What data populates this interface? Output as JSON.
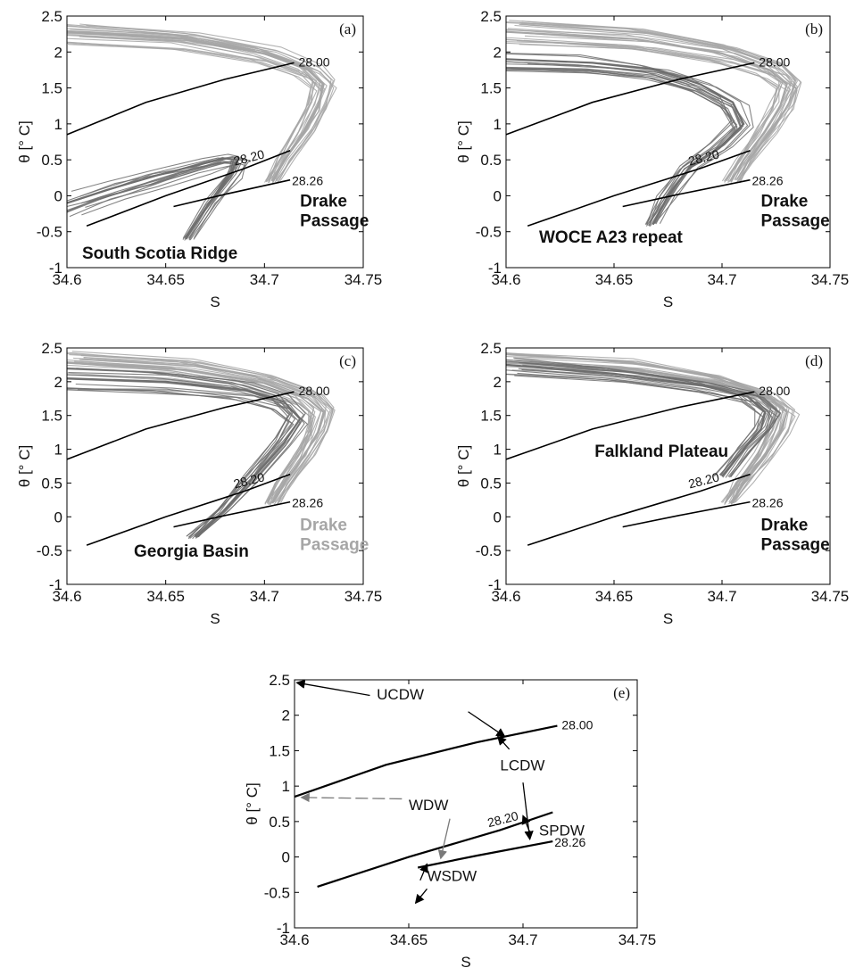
{
  "chart_data": [
    {
      "panel": "(a)",
      "type": "line",
      "xlabel": "S",
      "ylabel": "θ [° C]",
      "xlim": [
        34.6,
        34.75
      ],
      "ylim": [
        -1,
        2.5
      ],
      "xticks": [
        "34.6",
        "34.65",
        "34.7",
        "34.75"
      ],
      "yticks": [
        "-1",
        "-0.5",
        "0",
        "0.5",
        "1",
        "1.5",
        "2",
        "2.5"
      ],
      "isopycnals": [
        {
          "label": "28.00",
          "x": [
            34.6,
            34.64,
            34.68,
            34.715
          ],
          "y": [
            0.85,
            1.3,
            1.62,
            1.85
          ]
        },
        {
          "label": "28.20",
          "x": [
            34.61,
            34.65,
            34.69,
            34.713
          ],
          "y": [
            -0.42,
            0.0,
            0.38,
            0.63
          ]
        },
        {
          "label": "28.26",
          "x": [
            34.654,
            34.68,
            34.713
          ],
          "y": [
            -0.15,
            0.02,
            0.22
          ]
        }
      ],
      "series": [
        {
          "name": "Drake Passage",
          "color": "#a6a6a6",
          "x": [
            34.6,
            34.66,
            34.7,
            34.722,
            34.73,
            34.727,
            34.72,
            34.71,
            34.704
          ],
          "y": [
            2.28,
            2.18,
            1.98,
            1.75,
            1.55,
            1.25,
            0.9,
            0.5,
            0.2
          ]
        },
        {
          "name": "South Scotia Ridge",
          "color": "#6e6e6e",
          "x": [
            34.6,
            34.62,
            34.645,
            34.665,
            34.68,
            34.686,
            34.683,
            34.672,
            34.66
          ],
          "y": [
            -0.1,
            0.08,
            0.28,
            0.42,
            0.52,
            0.5,
            0.3,
            -0.1,
            -0.6
          ]
        }
      ],
      "annotations": [
        "South Scotia Ridge",
        "Drake Passage"
      ]
    },
    {
      "panel": "(b)",
      "type": "line",
      "xlabel": "S",
      "ylabel": "θ [° C]",
      "xlim": [
        34.6,
        34.75
      ],
      "ylim": [
        -1,
        2.5
      ],
      "xticks": [
        "34.6",
        "34.65",
        "34.7",
        "34.75"
      ],
      "yticks": [
        "-1",
        "-0.5",
        "0",
        "0.5",
        "1",
        "1.5",
        "2",
        "2.5"
      ],
      "isopycnals": [
        {
          "label": "28.00",
          "x": [
            34.6,
            34.64,
            34.68,
            34.715
          ],
          "y": [
            0.85,
            1.3,
            1.62,
            1.85
          ]
        },
        {
          "label": "28.20",
          "x": [
            34.61,
            34.65,
            34.69,
            34.713
          ],
          "y": [
            -0.42,
            0.0,
            0.38,
            0.63
          ]
        },
        {
          "label": "28.26",
          "x": [
            34.654,
            34.68,
            34.713
          ],
          "y": [
            -0.15,
            0.02,
            0.22
          ]
        }
      ],
      "series": [
        {
          "name": "Drake Passage",
          "color": "#a6a6a6",
          "x": [
            34.6,
            34.66,
            34.7,
            34.722,
            34.73,
            34.727,
            34.72,
            34.71,
            34.704
          ],
          "y": [
            2.28,
            2.18,
            1.98,
            1.75,
            1.55,
            1.25,
            0.9,
            0.5,
            0.2
          ]
        },
        {
          "name": "WOCE A23 repeat",
          "color": "#6e6e6e",
          "x": [
            34.6,
            34.64,
            34.67,
            34.69,
            34.705,
            34.71,
            34.7,
            34.685,
            34.675,
            34.668
          ],
          "y": [
            1.9,
            1.85,
            1.75,
            1.55,
            1.3,
            1.0,
            0.7,
            0.4,
            0.0,
            -0.4
          ]
        }
      ],
      "annotations": [
        "WOCE A23 repeat",
        "Drake Passage"
      ]
    },
    {
      "panel": "(c)",
      "type": "line",
      "xlabel": "S",
      "ylabel": "θ [° C]",
      "xlim": [
        34.6,
        34.75
      ],
      "ylim": [
        -1,
        2.5
      ],
      "xticks": [
        "34.6",
        "34.65",
        "34.7",
        "34.75"
      ],
      "yticks": [
        "-1",
        "-0.5",
        "0",
        "0.5",
        "1",
        "1.5",
        "2",
        "2.5"
      ],
      "isopycnals": [
        {
          "label": "28.00",
          "x": [
            34.6,
            34.64,
            34.68,
            34.715
          ],
          "y": [
            0.85,
            1.3,
            1.62,
            1.85
          ]
        },
        {
          "label": "28.20",
          "x": [
            34.61,
            34.65,
            34.69,
            34.713
          ],
          "y": [
            -0.42,
            0.0,
            0.38,
            0.63
          ]
        },
        {
          "label": "28.26",
          "x": [
            34.654,
            34.68,
            34.713
          ],
          "y": [
            -0.15,
            0.02,
            0.22
          ]
        }
      ],
      "series": [
        {
          "name": "Drake Passage",
          "color": "#a6a6a6",
          "x": [
            34.6,
            34.66,
            34.7,
            34.722,
            34.73,
            34.727,
            34.72,
            34.71,
            34.704
          ],
          "y": [
            2.28,
            2.18,
            1.98,
            1.75,
            1.55,
            1.25,
            0.9,
            0.5,
            0.2
          ]
        },
        {
          "name": "Georgia Basin",
          "color": "#6e6e6e",
          "x": [
            34.6,
            34.65,
            34.69,
            34.71,
            34.718,
            34.71,
            34.695,
            34.68,
            34.665
          ],
          "y": [
            2.05,
            2.0,
            1.88,
            1.7,
            1.45,
            1.1,
            0.6,
            0.1,
            -0.3
          ]
        }
      ],
      "annotations": [
        "Georgia Basin",
        "Drake Passage"
      ]
    },
    {
      "panel": "(d)",
      "type": "line",
      "xlabel": "S",
      "ylabel": "θ [° C]",
      "xlim": [
        34.6,
        34.75
      ],
      "ylim": [
        -1,
        2.5
      ],
      "xticks": [
        "34.6",
        "34.65",
        "34.7",
        "34.75"
      ],
      "yticks": [
        "-1",
        "-0.5",
        "0",
        "0.5",
        "1",
        "1.5",
        "2",
        "2.5"
      ],
      "isopycnals": [
        {
          "label": "28.00",
          "x": [
            34.6,
            34.64,
            34.68,
            34.715
          ],
          "y": [
            0.85,
            1.3,
            1.62,
            1.85
          ]
        },
        {
          "label": "28.20",
          "x": [
            34.61,
            34.65,
            34.69,
            34.713
          ],
          "y": [
            -0.42,
            0.0,
            0.38,
            0.63
          ]
        },
        {
          "label": "28.26",
          "x": [
            34.654,
            34.68,
            34.713
          ],
          "y": [
            -0.15,
            0.02,
            0.22
          ]
        }
      ],
      "series": [
        {
          "name": "Drake Passage",
          "color": "#a6a6a6",
          "x": [
            34.6,
            34.66,
            34.7,
            34.722,
            34.73,
            34.727,
            34.72,
            34.71,
            34.704
          ],
          "y": [
            2.28,
            2.18,
            1.98,
            1.75,
            1.55,
            1.25,
            0.9,
            0.5,
            0.2
          ]
        },
        {
          "name": "Falkland Plateau",
          "color": "#6e6e6e",
          "x": [
            34.6,
            34.65,
            34.69,
            34.712,
            34.72,
            34.718,
            34.71,
            34.7
          ],
          "y": [
            2.25,
            2.12,
            1.95,
            1.78,
            1.55,
            1.3,
            1.0,
            0.6
          ]
        }
      ],
      "annotations": [
        "Falkland Plateau",
        "Drake Passage"
      ]
    },
    {
      "panel": "(e)",
      "type": "line",
      "xlabel": "S",
      "ylabel": "θ [° C]",
      "xlim": [
        34.6,
        34.75
      ],
      "ylim": [
        -1,
        2.5
      ],
      "xticks": [
        "34.6",
        "34.65",
        "34.7",
        "34.75"
      ],
      "yticks": [
        "-1",
        "-0.5",
        "0",
        "0.5",
        "1",
        "1.5",
        "2",
        "2.5"
      ],
      "isopycnals": [
        {
          "label": "28.00",
          "x": [
            34.6,
            34.64,
            34.68,
            34.715
          ],
          "y": [
            0.85,
            1.3,
            1.62,
            1.85
          ]
        },
        {
          "label": "28.20",
          "x": [
            34.61,
            34.65,
            34.69,
            34.713
          ],
          "y": [
            -0.42,
            0.0,
            0.38,
            0.63
          ]
        },
        {
          "label": "28.26",
          "x": [
            34.654,
            34.68,
            34.713
          ],
          "y": [
            -0.15,
            0.02,
            0.22
          ]
        }
      ],
      "water_masses": [
        "UCDW",
        "LCDW",
        "WDW",
        "SPDW",
        "WSDW"
      ]
    }
  ]
}
